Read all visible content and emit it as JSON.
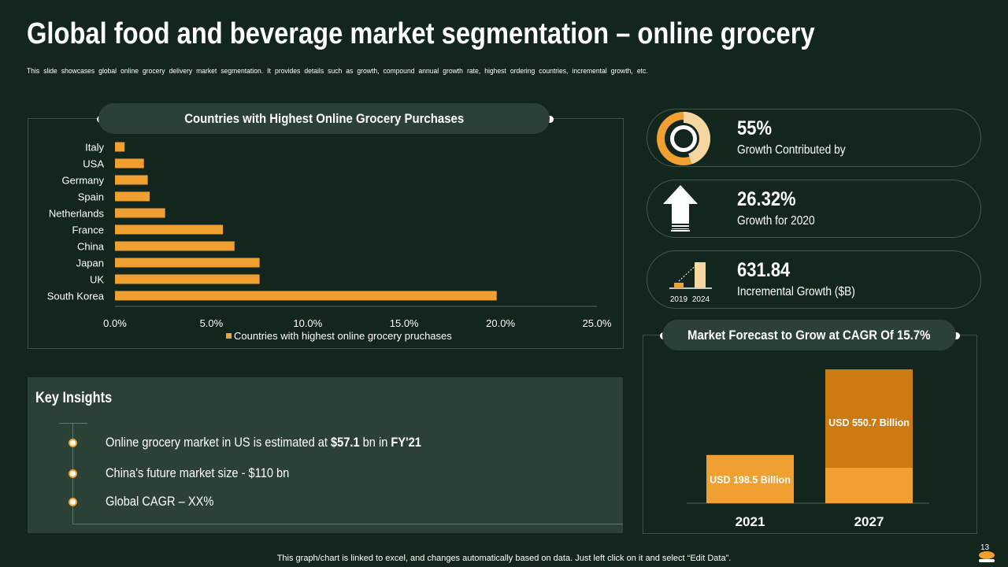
{
  "title": "Global food and beverage market segmentation – online grocery",
  "subtitle": "This slide showcases global online grocery delivery market segmentation. It provides details such as growth, compound annual growth rate, highest ordering countries, incremental growth, etc.",
  "chart_data": [
    {
      "type": "bar",
      "orientation": "horizontal",
      "title": "Countries with Highest Online Grocery Purchases",
      "categories": [
        "Italy",
        "USA",
        "Germany",
        "Spain",
        "Netherlands",
        "France",
        "China",
        "Japan",
        "UK",
        "South Korea"
      ],
      "series": [
        {
          "name": "Countries with highest online grocery pruchases",
          "values": [
            0.5,
            1.5,
            1.7,
            1.8,
            2.6,
            5.6,
            6.2,
            7.5,
            7.5,
            19.8
          ]
        }
      ],
      "xlim": [
        0,
        25
      ],
      "xticks": [
        "0.0%",
        "5.0%",
        "10.0%",
        "15.0%",
        "20.0%",
        "25.0%"
      ],
      "legend": "bottom",
      "color": "#f0a030"
    },
    {
      "type": "bar",
      "orientation": "vertical",
      "title": "Market Forecast to Grow at CAGR Of 15.7%",
      "categories": [
        "2021",
        "2027"
      ],
      "values": [
        198.5,
        550.7
      ],
      "data_labels": [
        "USD 198.5 Billion",
        "USD 550.7 Billion"
      ],
      "colors": [
        "#f0a030",
        "#cc7a12"
      ]
    }
  ],
  "kpis": [
    {
      "value": "55%",
      "label": "Growth Contributed by",
      "icon": "donut-icon",
      "fraction": 0.55
    },
    {
      "value": "26.32%",
      "label": "Growth for 2020",
      "icon": "arrow-up-icon"
    },
    {
      "value": "631.84",
      "label": "Incremental Growth ($B)",
      "icon": "growth-bars-icon",
      "years": [
        "2019",
        "2024"
      ]
    }
  ],
  "insights": {
    "title": "Key Insights",
    "items": [
      {
        "text": "Online grocery market in US is estimated at ",
        "bold1": "$57.1",
        "mid": " bn in ",
        "bold2": "FY'21"
      },
      {
        "text": "China's future market size - $110 bn"
      },
      {
        "text": "Global CAGR – XX%"
      }
    ]
  },
  "footer": "This graph/chart is linked to excel, and changes automatically based on data. Just left click on it and select “Edit Data”.",
  "page_number": "13",
  "colors": {
    "background": "#12261e",
    "panel": "#2b4136",
    "accent": "#f0a030",
    "accent_dark": "#cc7a12"
  }
}
